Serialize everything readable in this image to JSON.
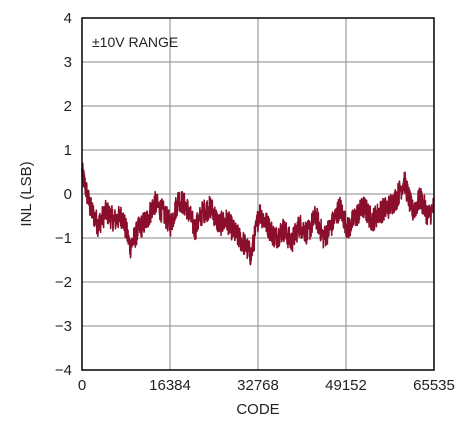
{
  "chart_data": {
    "type": "line",
    "title": "",
    "xlabel": "CODE",
    "ylabel": "INL (LSB)",
    "annotation": "±10V RANGE",
    "xlim": [
      0,
      65535
    ],
    "ylim": [
      -4,
      4
    ],
    "xticks": [
      0,
      16384,
      32768,
      49152,
      65535
    ],
    "xtick_labels": [
      "0",
      "16384",
      "32768",
      "49152",
      "65535"
    ],
    "yticks": [
      4,
      3,
      2,
      1,
      0,
      -1,
      -2,
      -3,
      -4
    ],
    "ytick_labels": [
      "4",
      "3",
      "2",
      "1",
      "0",
      "−1",
      "−2",
      "−3",
      "−4"
    ],
    "grid": true,
    "legend": "none",
    "series_color": "#8b0e2c",
    "series": [
      {
        "x": [
          0,
          1500,
          3000,
          4500,
          6000,
          7500,
          9000,
          10500,
          12000,
          13500,
          15000,
          16500,
          18000,
          19500,
          21000,
          22500,
          24000,
          25500,
          27000,
          28500,
          30000,
          31500,
          33000,
          34500,
          36000,
          37500,
          39000,
          40500,
          42000,
          43500,
          45000,
          46500,
          48000,
          49500,
          51000,
          52500,
          54000,
          55500,
          57000,
          58500,
          60000,
          61500,
          63000,
          64500,
          65535
        ],
        "y": [
          0.5,
          -0.3,
          -0.7,
          -0.4,
          -0.6,
          -0.5,
          -1.2,
          -0.8,
          -0.6,
          -0.2,
          -0.4,
          -0.7,
          -0.1,
          -0.3,
          -0.8,
          -0.4,
          -0.3,
          -0.7,
          -0.6,
          -0.9,
          -1.1,
          -1.4,
          -0.4,
          -0.7,
          -1.0,
          -0.8,
          -1.1,
          -0.7,
          -0.9,
          -0.5,
          -1.0,
          -0.7,
          -0.3,
          -0.8,
          -0.5,
          -0.3,
          -0.6,
          -0.4,
          -0.3,
          -0.1,
          0.3,
          -0.4,
          -0.1,
          -0.5,
          -0.3
        ]
      }
    ]
  }
}
